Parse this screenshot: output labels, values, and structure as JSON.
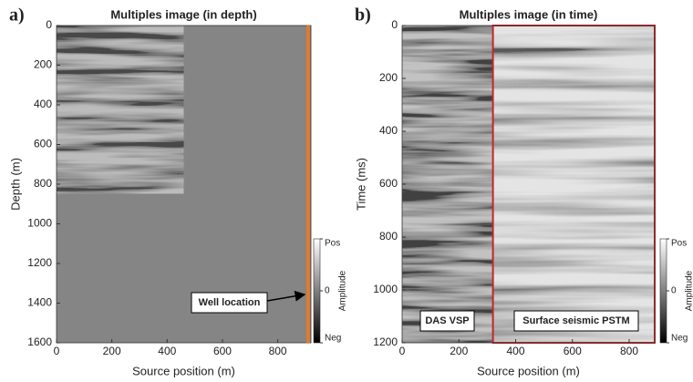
{
  "chart_data": [
    {
      "type": "image",
      "panel_label": "a)",
      "title": "Multiples image (in depth)",
      "xlabel": "Source position (m)",
      "ylabel": "Depth (m)",
      "xlim": [
        0,
        920
      ],
      "ylim": [
        1600,
        0
      ],
      "xticks": [
        0,
        200,
        400,
        600,
        800
      ],
      "yticks": [
        0,
        200,
        400,
        600,
        800,
        1000,
        1200,
        1400,
        1600
      ],
      "colorbar": {
        "label": "Amplitude",
        "clim": [
          -1,
          1
        ],
        "ticks": [
          {
            "value": 1,
            "label": "Pos"
          },
          0,
          {
            "value": -1,
            "label": "Neg"
          }
        ]
      },
      "well_x": 910,
      "well_color": "#e07b2e",
      "annotations": [
        {
          "text": "Well location"
        }
      ]
    },
    {
      "type": "image",
      "panel_label": "b)",
      "title": "Multiples image (in time)",
      "xlabel": "Source position (m)",
      "ylabel": "Time (ms)",
      "xlim": [
        0,
        890
      ],
      "ylim": [
        1200,
        0
      ],
      "xticks": [
        0,
        200,
        400,
        600,
        800
      ],
      "yticks": [
        0,
        200,
        400,
        600,
        800,
        1000,
        1200
      ],
      "colorbar": {
        "label": "Amplitude",
        "clim": [
          -1,
          1
        ],
        "ticks": [
          {
            "value": 1,
            "label": "Pos"
          },
          0,
          {
            "value": -1,
            "label": "Neg"
          }
        ]
      },
      "highlight": {
        "x0": 320,
        "x1": 890,
        "color": "#c0282d"
      },
      "annotations": [
        {
          "text": "DAS VSP"
        },
        {
          "text": "Surface seismic PSTM"
        }
      ]
    }
  ]
}
